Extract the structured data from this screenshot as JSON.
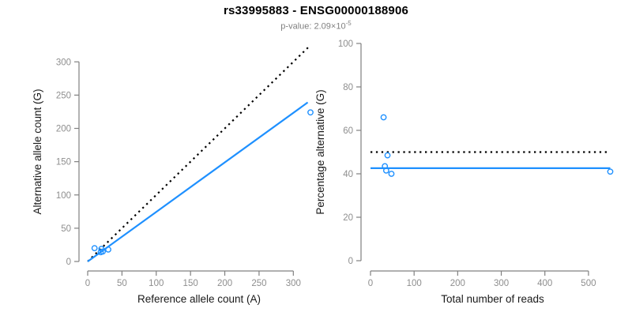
{
  "header": {
    "title": "rs33995883 - ENSG00000188906",
    "subtitle_prefix": "p-value: 2.09×10",
    "subtitle_exponent": "-5"
  },
  "colors": {
    "point": "#1E90FF",
    "fit_blue": "#1E90FF",
    "dotted_black": "#000000",
    "axis": "#808080",
    "tick_label": "#8e8e8e",
    "axis_label": "#1a1a1a"
  },
  "chart_data": [
    {
      "name": "allele-count-scatter",
      "type": "scatter",
      "xlabel": "Reference allele count (A)",
      "ylabel": "Alternative allele count (G)",
      "xlim": [
        0,
        325
      ],
      "ylim": [
        0,
        330
      ],
      "xticks": [
        0,
        50,
        100,
        150,
        200,
        250,
        300
      ],
      "yticks": [
        0,
        50,
        100,
        150,
        200,
        250,
        300
      ],
      "grid": false,
      "legend": null,
      "points": [
        [
          10,
          20
        ],
        [
          20,
          19
        ],
        [
          19,
          14
        ],
        [
          22,
          15
        ],
        [
          30,
          18
        ],
        [
          325,
          224
        ]
      ],
      "lines": [
        {
          "name": "identity-line",
          "style": "dotted",
          "color": "#000000",
          "x1": 0,
          "y1": 0,
          "x2": 322,
          "y2": 322
        },
        {
          "name": "fitted-line",
          "style": "solid",
          "color": "#1E90FF",
          "x1": 0,
          "y1": 0,
          "x2": 321,
          "y2": 239
        }
      ]
    },
    {
      "name": "percentage-vs-reads-scatter",
      "type": "scatter",
      "xlabel": "Total number of reads",
      "ylabel": "Percentage alternative (G)",
      "xlim": [
        0,
        560
      ],
      "ylim": [
        0,
        100
      ],
      "xticks": [
        0,
        100,
        200,
        300,
        400,
        500
      ],
      "yticks": [
        0,
        20,
        40,
        60,
        80,
        100
      ],
      "grid": false,
      "legend": null,
      "points": [
        [
          30,
          66
        ],
        [
          39,
          48.5
        ],
        [
          33,
          43.5
        ],
        [
          36,
          41.5
        ],
        [
          48,
          40
        ],
        [
          550,
          41
        ]
      ],
      "lines": [
        {
          "name": "expected-50-percent-line",
          "style": "dotted",
          "color": "#000000",
          "x1": 0,
          "y1": 50,
          "x2": 550,
          "y2": 50
        },
        {
          "name": "mean-percentage-line",
          "style": "solid",
          "color": "#1E90FF",
          "x1": 0,
          "y1": 42.6,
          "x2": 550,
          "y2": 42.6
        }
      ]
    }
  ]
}
